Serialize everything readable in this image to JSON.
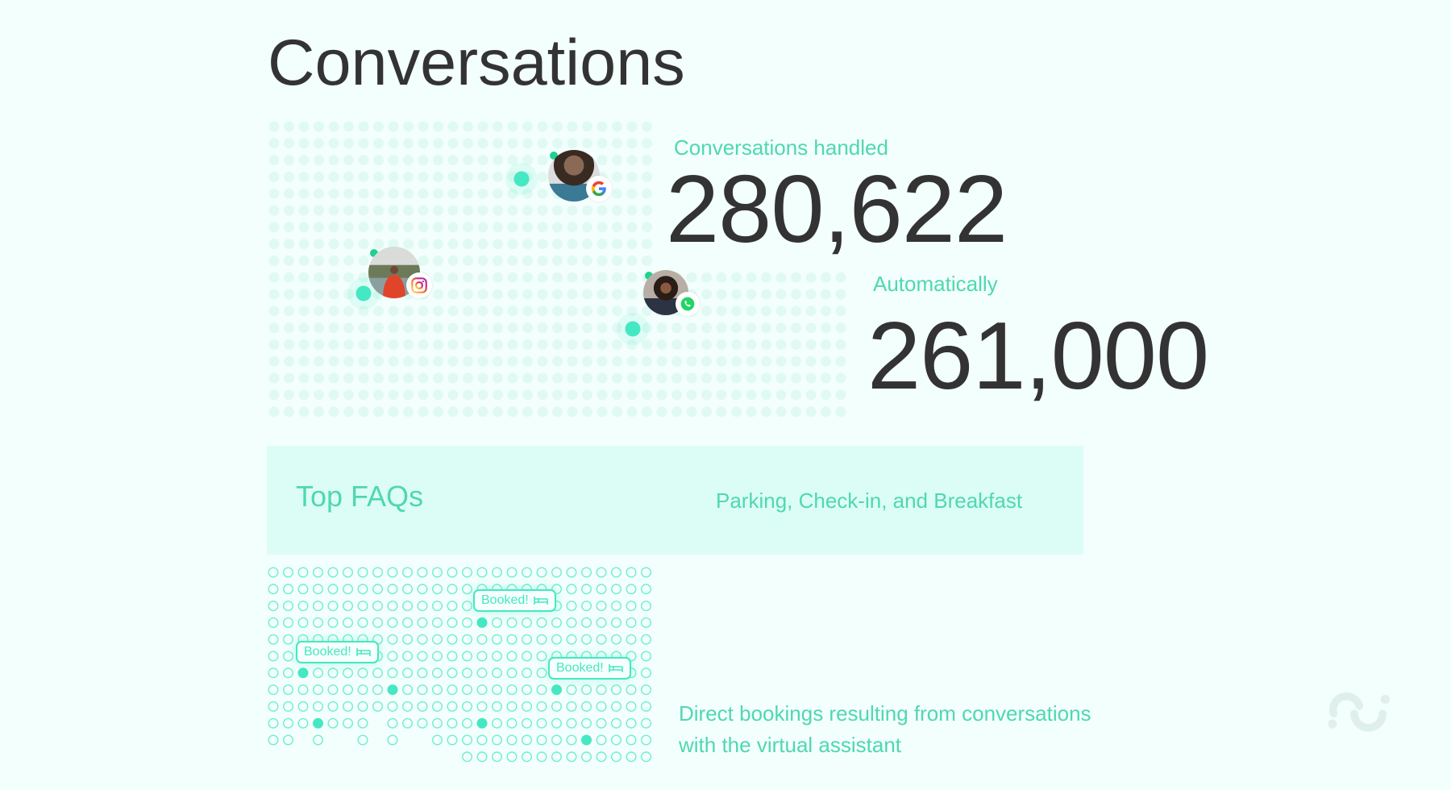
{
  "title": "Conversations",
  "stats": {
    "handled_label": "Conversations handled",
    "handled_value": "280,622",
    "automatic_label": "Automatically",
    "automatic_value": "261,000"
  },
  "faq": {
    "heading": "Top FAQs",
    "topics": "Parking, Check-in, and Breakfast"
  },
  "bookings": {
    "badge_label": "Booked!",
    "badge_icon": "bed-icon",
    "description_line1": "Direct bookings resulting from conversations",
    "description_line2": "with the virtual assistant"
  },
  "channels": [
    "google",
    "instagram",
    "whatsapp"
  ],
  "colors": {
    "background": "#f3fffc",
    "accent": "#45e8c2",
    "accent_text": "#4fd8b0",
    "faq_background": "#dcfdf5",
    "text_dark": "#333333",
    "dot_light": "#e0faf3"
  }
}
